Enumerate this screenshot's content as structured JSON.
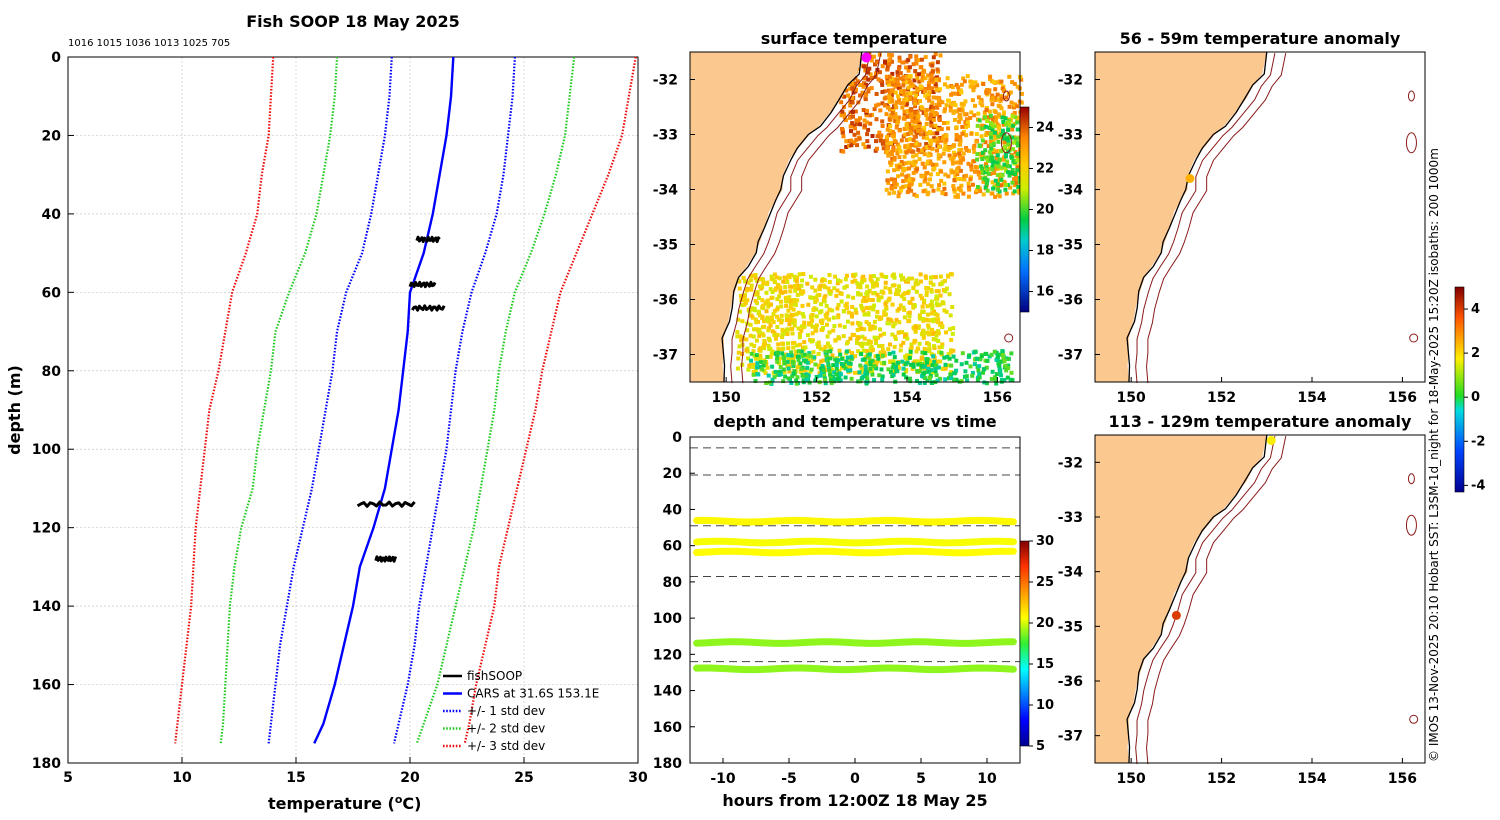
{
  "colors": {
    "land": "#fbc890",
    "coast": "#000000",
    "isobath": "#8b1a1a",
    "cars": "#0000ff",
    "std1": "#0000ff",
    "std2": "#22cc22",
    "std3": "#ee1111",
    "fish": "#000000",
    "grid": "#c8c8c8"
  },
  "footer_text": "© IMOS 13-Nov-2025 20:10 Hobart SST: L3SM-1d_night for 18-May-2025 15:20Z isobaths: 200  1000m",
  "chart_data": [
    {
      "id": "profile",
      "type": "line",
      "title": "Fish SOOP 18 May 2025",
      "subtitle": "1016 1015 1036 1013 1025 705",
      "xlabel": "temperature (°C)",
      "xlabel_main": "temperature (",
      "xlabel_deg": "o",
      "xlabel_end": "C)",
      "ylabel": "depth (m)",
      "xlim": [
        5,
        30
      ],
      "ylim": [
        0,
        180
      ],
      "xticks": [
        "5",
        "10",
        "15",
        "20",
        "25",
        "30"
      ],
      "yticks": [
        "0",
        "20",
        "40",
        "60",
        "80",
        "100",
        "120",
        "140",
        "160",
        "180"
      ],
      "depths": [
        0,
        10,
        20,
        30,
        40,
        50,
        60,
        70,
        80,
        90,
        100,
        110,
        120,
        130,
        140,
        150,
        160,
        170,
        175
      ],
      "series": [
        {
          "name": "CARS at 31.6S 153.1E",
          "style": "solid",
          "color_key": "cars",
          "values": [
            21.9,
            21.8,
            21.6,
            21.3,
            21.0,
            20.6,
            20.0,
            19.9,
            19.7,
            19.5,
            19.2,
            18.9,
            18.4,
            17.8,
            17.5,
            17.1,
            16.7,
            16.2,
            15.8
          ]
        },
        {
          "name": "+/- 1 std dev",
          "style": "dotted",
          "color_key": "std1",
          "values": [
            [
              19.2,
              24.6
            ],
            [
              19.1,
              24.5
            ],
            [
              18.9,
              24.3
            ],
            [
              18.6,
              24.1
            ],
            [
              18.3,
              23.8
            ],
            [
              17.9,
              23.3
            ],
            [
              17.2,
              22.7
            ],
            [
              16.8,
              22.3
            ],
            [
              16.6,
              22.0
            ],
            [
              16.3,
              21.8
            ],
            [
              16.0,
              21.6
            ],
            [
              15.7,
              21.3
            ],
            [
              15.3,
              21.0
            ],
            [
              14.9,
              20.7
            ],
            [
              14.6,
              20.4
            ],
            [
              14.3,
              20.2
            ],
            [
              14.1,
              19.9
            ],
            [
              13.9,
              19.5
            ],
            [
              13.8,
              19.3
            ]
          ]
        },
        {
          "name": "+/- 2 std dev",
          "style": "dotted",
          "color_key": "std2",
          "values": [
            [
              16.8,
              27.2
            ],
            [
              16.7,
              27.0
            ],
            [
              16.5,
              26.8
            ],
            [
              16.2,
              26.4
            ],
            [
              15.9,
              25.9
            ],
            [
              15.4,
              25.3
            ],
            [
              14.7,
              24.6
            ],
            [
              14.1,
              24.2
            ],
            [
              13.9,
              23.9
            ],
            [
              13.6,
              23.7
            ],
            [
              13.3,
              23.4
            ],
            [
              13.1,
              23.1
            ],
            [
              12.6,
              22.8
            ],
            [
              12.3,
              22.4
            ],
            [
              12.1,
              22.0
            ],
            [
              12.0,
              21.6
            ],
            [
              11.9,
              21.2
            ],
            [
              11.8,
              20.6
            ],
            [
              11.7,
              20.3
            ]
          ]
        },
        {
          "name": "+/- 3 std dev",
          "style": "dotted",
          "color_key": "std3",
          "values": [
            [
              14.0,
              29.9
            ],
            [
              13.9,
              29.6
            ],
            [
              13.8,
              29.3
            ],
            [
              13.5,
              28.7
            ],
            [
              13.3,
              28.0
            ],
            [
              12.8,
              27.3
            ],
            [
              12.2,
              26.6
            ],
            [
              11.9,
              26.2
            ],
            [
              11.6,
              25.8
            ],
            [
              11.2,
              25.5
            ],
            [
              11.0,
              25.1
            ],
            [
              10.8,
              24.7
            ],
            [
              10.6,
              24.3
            ],
            [
              10.5,
              23.9
            ],
            [
              10.4,
              23.7
            ],
            [
              10.2,
              23.3
            ],
            [
              10.0,
              22.9
            ],
            [
              9.8,
              22.6
            ],
            [
              9.7,
              22.4
            ]
          ]
        },
        {
          "name": "fishSOOP",
          "style": "marker",
          "color_key": "fish",
          "clusters": [
            {
              "depth": 46.5,
              "tmin": 20.3,
              "tmax": 21.3
            },
            {
              "depth": 58.0,
              "tmin": 20.0,
              "tmax": 21.1
            },
            {
              "depth": 64.0,
              "tmin": 20.1,
              "tmax": 21.5
            },
            {
              "depth": 114.0,
              "tmin": 17.7,
              "tmax": 20.2
            },
            {
              "depth": 128.0,
              "tmin": 18.5,
              "tmax": 19.4
            }
          ]
        }
      ],
      "legend": [
        "fishSOOP",
        "CARS at 31.6S 153.1E",
        "+/- 1 std dev",
        "+/- 2 std dev",
        "+/- 3 std dev"
      ],
      "legend_position": "bottom-right"
    },
    {
      "id": "sst_map",
      "type": "heatmap",
      "title": "surface temperature",
      "xlim": [
        149.2,
        156.5
      ],
      "ylim": [
        -37.5,
        -31.5
      ],
      "xticks": [
        "150",
        "152",
        "154",
        "156"
      ],
      "yticks": [
        "-32",
        "-33",
        "-34",
        "-35",
        "-36",
        "-37"
      ],
      "colorbar": {
        "min": 15,
        "max": 25,
        "ticks": [
          "16",
          "18",
          "20",
          "22",
          "24"
        ]
      },
      "regions": [
        {
          "name": "north-warm",
          "lon": [
            152.5,
            154.7
          ],
          "lat": [
            -33.3,
            -31.5
          ],
          "value": 23.8
        },
        {
          "name": "north-east",
          "lon": [
            153.5,
            156.5
          ],
          "lat": [
            -34.1,
            -31.9
          ],
          "value": 23.0
        },
        {
          "name": "south-yellow",
          "lon": [
            150.2,
            155.0
          ],
          "lat": [
            -37.3,
            -35.5
          ],
          "value": 21.8
        },
        {
          "name": "south-green",
          "lon": [
            150.5,
            156.3
          ],
          "lat": [
            -37.5,
            -36.9
          ],
          "value": 19.5
        },
        {
          "name": "east-green",
          "lon": [
            155.5,
            156.5
          ],
          "lat": [
            -34.0,
            -32.6
          ],
          "value": 20.0
        }
      ],
      "marker": {
        "lon": 153.1,
        "lat": -31.6,
        "color": "#ff00ff"
      }
    },
    {
      "id": "time_series",
      "type": "scatter",
      "title": "depth and temperature vs time",
      "xlabel": "hours from 12:00Z 18 May 25",
      "ylabel": "",
      "xlim": [
        -12.5,
        12.5
      ],
      "ylim": [
        0,
        180
      ],
      "xticks": [
        "-10",
        "-5",
        "0",
        "5",
        "10"
      ],
      "yticks": [
        "0",
        "20",
        "40",
        "60",
        "80",
        "100",
        "120",
        "140",
        "160",
        "180"
      ],
      "reference_depths": [
        6,
        21,
        49,
        77,
        124
      ],
      "colorbar": {
        "min": 5,
        "max": 30,
        "ticks": [
          "5",
          "10",
          "15",
          "20",
          "25",
          "30"
        ]
      },
      "tracks": [
        {
          "depth": 46.5,
          "temp": 20.8
        },
        {
          "depth": 58.0,
          "temp": 20.5
        },
        {
          "depth": 63.5,
          "temp": 20.7
        },
        {
          "depth": 113.5,
          "temp": 18.9
        },
        {
          "depth": 128.0,
          "temp": 18.9
        }
      ]
    },
    {
      "id": "anom_56",
      "type": "heatmap",
      "title": "56 - 59m temperature anomaly",
      "xlim": [
        149.2,
        156.5
      ],
      "ylim": [
        -37.5,
        -31.5
      ],
      "xticks": [
        "150",
        "152",
        "154",
        "156"
      ],
      "yticks": [
        "-32",
        "-33",
        "-34",
        "-35",
        "-36",
        "-37"
      ],
      "points": [
        {
          "lon": 151.3,
          "lat": -33.8,
          "value": 2.5
        }
      ]
    },
    {
      "id": "anom_113",
      "type": "heatmap",
      "title": "113 - 129m temperature anomaly",
      "xlim": [
        149.2,
        156.5
      ],
      "ylim": [
        -37.5,
        -31.5
      ],
      "xticks": [
        "150",
        "152",
        "154",
        "156"
      ],
      "yticks": [
        "-32",
        "-33",
        "-34",
        "-35",
        "-36",
        "-37"
      ],
      "colorbar": {
        "min": -4.3,
        "max": 5.0,
        "ticks": [
          "-4",
          "-2",
          "0",
          "2",
          "4"
        ]
      },
      "points": [
        {
          "lon": 153.1,
          "lat": -31.6,
          "value": 1.7
        },
        {
          "lon": 151.0,
          "lat": -34.8,
          "value": 4.0
        }
      ]
    }
  ]
}
